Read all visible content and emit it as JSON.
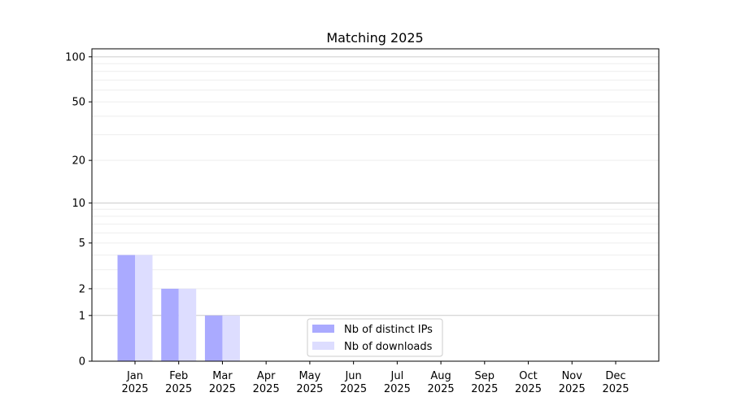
{
  "chart_data": {
    "type": "bar",
    "title": "Matching 2025",
    "xlabel": "",
    "ylabel": "",
    "yscale": "log(1+y)",
    "ylim": [
      0,
      113
    ],
    "yticks": [
      0,
      1,
      2,
      5,
      10,
      20,
      50,
      100
    ],
    "grid": "horizontal major and minor",
    "legend": "lower center",
    "categories": [
      "Jan\n2025",
      "Feb\n2025",
      "Mar\n2025",
      "Apr\n2025",
      "May\n2025",
      "Jun\n2025",
      "Jul\n2025",
      "Aug\n2025",
      "Sep\n2025",
      "Oct\n2025",
      "Nov\n2025",
      "Dec\n2025"
    ],
    "series": [
      {
        "name": "Nb of distinct IPs",
        "color": "#aaaaff",
        "values": [
          4,
          2,
          1,
          0,
          0,
          0,
          0,
          0,
          0,
          0,
          0,
          0
        ]
      },
      {
        "name": "Nb of downloads",
        "color": "#ddddff",
        "values": [
          4,
          2,
          1,
          0,
          0,
          0,
          0,
          0,
          0,
          0,
          0,
          0
        ]
      }
    ]
  }
}
